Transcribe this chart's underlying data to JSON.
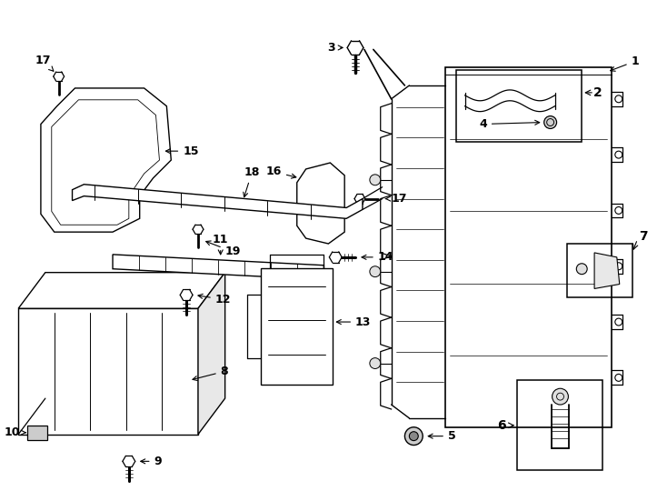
{
  "background_color": "#ffffff",
  "line_color": "#1a1a1a",
  "lw": 0.9,
  "fig_width": 7.34,
  "fig_height": 5.4,
  "dpi": 100
}
